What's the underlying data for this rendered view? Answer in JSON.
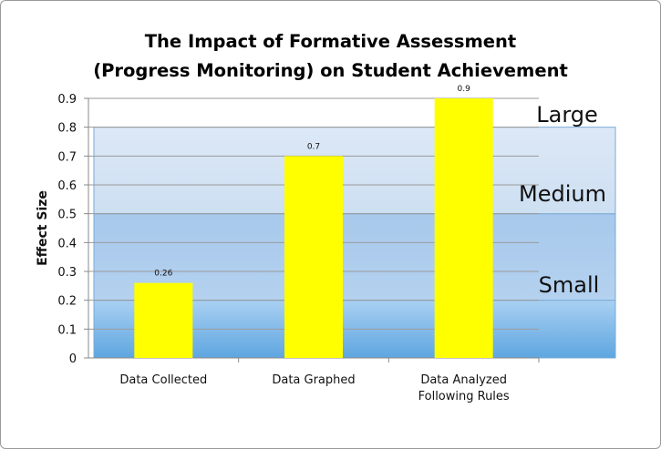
{
  "chart_data": {
    "type": "bar",
    "title_line1": "The Impact of Formative Assessment",
    "title_line2": "(Progress Monitoring) on Student Achievement",
    "xlabel": "",
    "ylabel": "Effect Size",
    "ylim": [
      0,
      0.9
    ],
    "yticks": [
      "0",
      "0.1",
      "0.2",
      "0.3",
      "0.4",
      "0.5",
      "0.6",
      "0.7",
      "0.8",
      "0.9"
    ],
    "grid": true,
    "categories": [
      [
        "Data Collected"
      ],
      [
        "Data Graphed"
      ],
      [
        "Data Analyzed",
        "Following Rules"
      ]
    ],
    "values": [
      0.26,
      0.7,
      0.9
    ],
    "data_labels": [
      "0.26",
      "0.7",
      "0.9"
    ],
    "bar_color": "#ffff00",
    "bands": [
      {
        "label": "Small",
        "from": 0,
        "to": 0.2,
        "color": "#7fb7e6"
      },
      {
        "label": "Medium",
        "from": 0.2,
        "to": 0.5,
        "color": "#aacbec"
      },
      {
        "label": "Large",
        "from": 0.5,
        "to": 0.8,
        "color": "#d6e5f5"
      }
    ]
  }
}
